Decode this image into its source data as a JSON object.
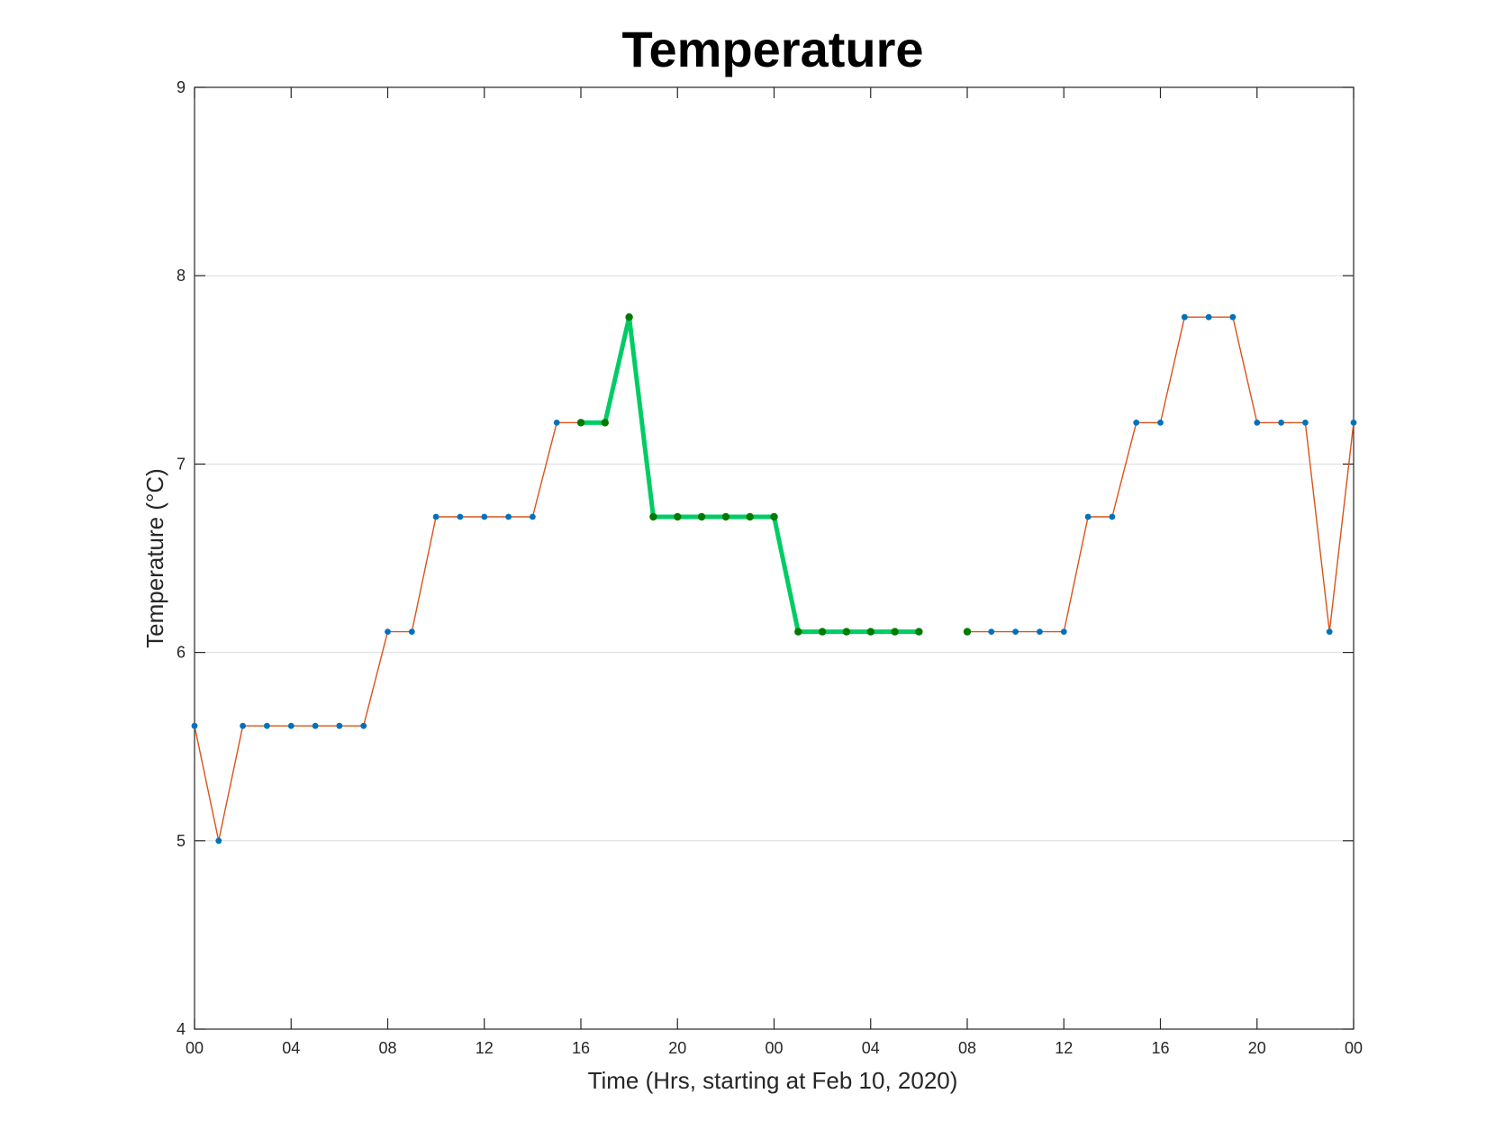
{
  "chart_data": {
    "type": "line",
    "title": "Temperature",
    "xlabel": "Time (Hrs, starting at Feb 10, 2020)",
    "ylabel": "Temperature (°C)",
    "xlim": [
      0,
      48
    ],
    "ylim": [
      4,
      9
    ],
    "x_ticks": [
      0,
      4,
      8,
      12,
      16,
      20,
      24,
      28,
      32,
      36,
      40,
      44,
      48
    ],
    "x_tick_labels": [
      "00",
      "04",
      "08",
      "12",
      "16",
      "20",
      "00",
      "04",
      "08",
      "12",
      "16",
      "20",
      "00"
    ],
    "y_ticks": [
      4,
      5,
      6,
      7,
      8,
      9
    ],
    "y_tick_labels": [
      "4",
      "5",
      "6",
      "7",
      "8",
      "9"
    ],
    "grid": "horizontal",
    "series": [
      {
        "role": "main",
        "color": "#D95319",
        "marker_color": "#0072BD",
        "line_width": "thin",
        "segments": [
          [
            [
              0,
              5.61
            ],
            [
              1,
              5.0
            ],
            [
              2,
              5.61
            ],
            [
              3,
              5.61
            ],
            [
              4,
              5.61
            ],
            [
              5,
              5.61
            ],
            [
              6,
              5.61
            ],
            [
              7,
              5.61
            ],
            [
              8,
              6.11
            ],
            [
              9,
              6.11
            ],
            [
              10,
              6.72
            ],
            [
              11,
              6.72
            ],
            [
              12,
              6.72
            ],
            [
              13,
              6.72
            ],
            [
              14,
              6.72
            ],
            [
              15,
              7.22
            ],
            [
              16,
              7.22
            ],
            [
              17,
              7.22
            ],
            [
              18,
              7.78
            ],
            [
              19,
              6.72
            ],
            [
              20,
              6.72
            ],
            [
              21,
              6.72
            ],
            [
              22,
              6.72
            ],
            [
              23,
              6.72
            ],
            [
              24,
              6.72
            ],
            [
              25,
              6.11
            ],
            [
              26,
              6.11
            ],
            [
              27,
              6.11
            ],
            [
              28,
              6.11
            ],
            [
              29,
              6.11
            ],
            [
              30,
              6.11
            ]
          ],
          [
            [
              32,
              6.11
            ],
            [
              33,
              6.11
            ],
            [
              34,
              6.11
            ],
            [
              35,
              6.11
            ],
            [
              36,
              6.11
            ],
            [
              37,
              6.72
            ],
            [
              38,
              6.72
            ],
            [
              39,
              7.22
            ],
            [
              40,
              7.22
            ],
            [
              41,
              7.78
            ],
            [
              42,
              7.78
            ],
            [
              43,
              7.78
            ],
            [
              44,
              7.22
            ],
            [
              45,
              7.22
            ],
            [
              46,
              7.22
            ],
            [
              47,
              6.11
            ],
            [
              48,
              7.22
            ]
          ]
        ]
      },
      {
        "role": "highlight",
        "color": "#00CC66",
        "marker_color": "#007A00",
        "line_width": "thick",
        "segments": [
          [
            [
              16,
              7.22
            ],
            [
              17,
              7.22
            ],
            [
              18,
              7.78
            ],
            [
              19,
              6.72
            ],
            [
              20,
              6.72
            ],
            [
              21,
              6.72
            ],
            [
              22,
              6.72
            ],
            [
              23,
              6.72
            ],
            [
              24,
              6.72
            ],
            [
              25,
              6.11
            ],
            [
              26,
              6.11
            ],
            [
              27,
              6.11
            ],
            [
              28,
              6.11
            ],
            [
              29,
              6.11
            ],
            [
              30,
              6.11
            ]
          ],
          [
            [
              32,
              6.11
            ]
          ]
        ]
      }
    ]
  }
}
